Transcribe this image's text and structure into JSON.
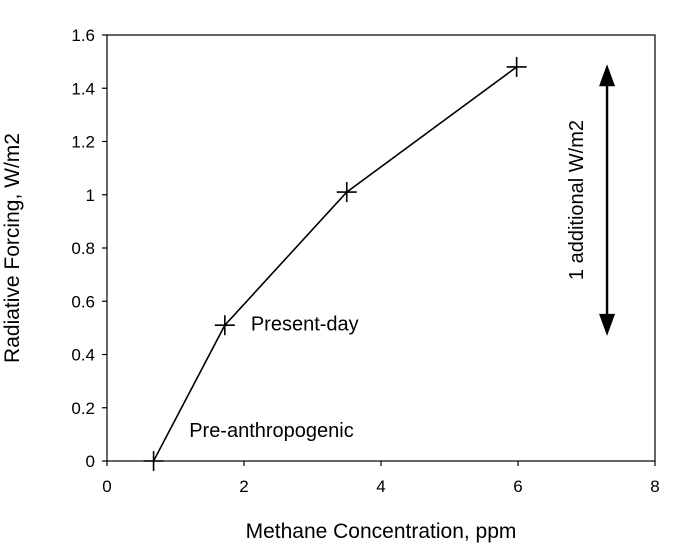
{
  "chart_data": {
    "type": "line",
    "title": "",
    "xlabel": "Methane Concentration, ppm",
    "ylabel": "Radiative Forcing, W/m2",
    "xlim": [
      0,
      8
    ],
    "ylim": [
      0,
      1.6
    ],
    "x_ticks": [
      0,
      2,
      4,
      6,
      8
    ],
    "x_tick_labels": [
      "0",
      "2",
      "4",
      "6",
      "8"
    ],
    "y_ticks": [
      0,
      0.2,
      0.4,
      0.6,
      0.8,
      1,
      1.2,
      1.4,
      1.6
    ],
    "y_tick_labels": [
      "0",
      "0.2",
      "0.4",
      "0.6",
      "0.8",
      "1",
      "1.2",
      "1.4",
      "1.6"
    ],
    "grid": false,
    "legend": "none",
    "series": [
      {
        "marker": "plus",
        "color": "#000000",
        "x": [
          0.68,
          1.72,
          3.5,
          5.98
        ],
        "y": [
          0.0,
          0.51,
          1.01,
          1.48
        ]
      }
    ],
    "annotations": [
      {
        "id": "pre-anthropogenic",
        "text": "Pre-anthropogenic",
        "x": 1.2,
        "y": 0.09
      },
      {
        "id": "present-day",
        "text": "Present-day",
        "x": 2.1,
        "y": 0.49
      }
    ],
    "range_arrow": {
      "label": "1 additional W/m2",
      "x": 7.3,
      "y_from": 0.47,
      "y_to": 1.49
    }
  }
}
